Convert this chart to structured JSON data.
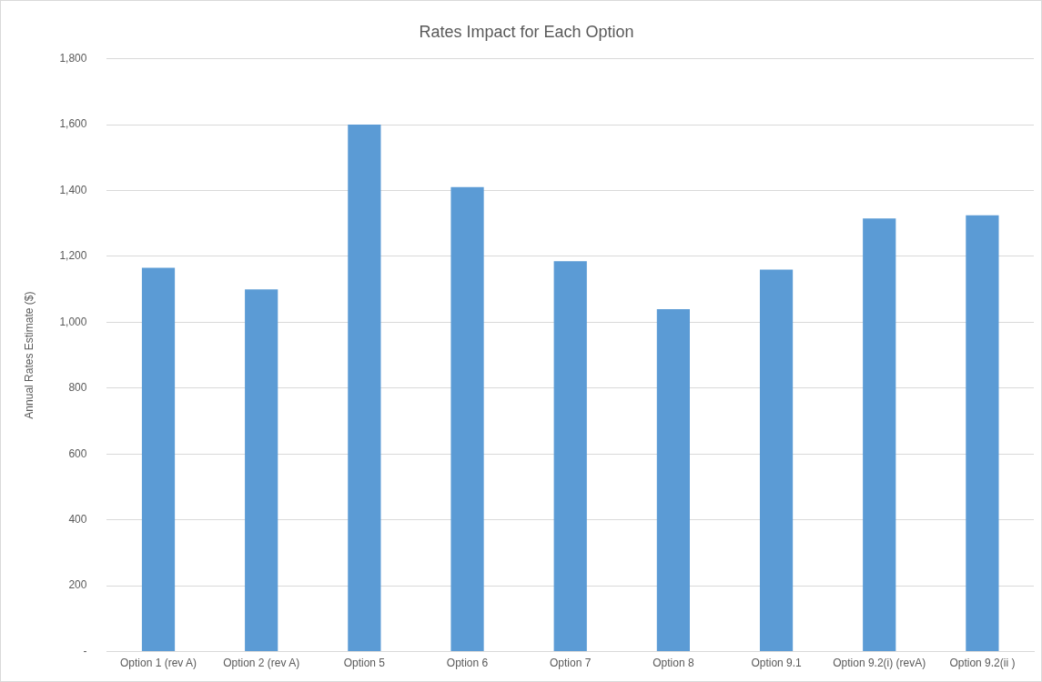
{
  "chart_data": {
    "type": "bar",
    "title": "Rates Impact for Each Option",
    "ylabel": "Annual Rates Estimate ($)",
    "categories": [
      "Option 1 (rev A)",
      "Option 2 (rev A)",
      "Option 5",
      "Option 6",
      "Option 7",
      "Option 8",
      "Option 9.1",
      "Option 9.2(i) (revA)",
      "Option 9.2(ii )"
    ],
    "values": [
      1165,
      1100,
      1600,
      1410,
      1185,
      1040,
      1160,
      1315,
      1325
    ],
    "color": "#5b9bd5",
    "ylim": [
      0,
      1800
    ],
    "yticks": [
      {
        "value": 0,
        "label": "-"
      },
      {
        "value": 200,
        "label": "200"
      },
      {
        "value": 400,
        "label": "400"
      },
      {
        "value": 600,
        "label": "600"
      },
      {
        "value": 800,
        "label": "800"
      },
      {
        "value": 1000,
        "label": "1,000"
      },
      {
        "value": 1200,
        "label": "1,200"
      },
      {
        "value": 1400,
        "label": "1,400"
      },
      {
        "value": 1600,
        "label": "1,600"
      },
      {
        "value": 1800,
        "label": "1,800"
      }
    ],
    "grid": "y"
  }
}
